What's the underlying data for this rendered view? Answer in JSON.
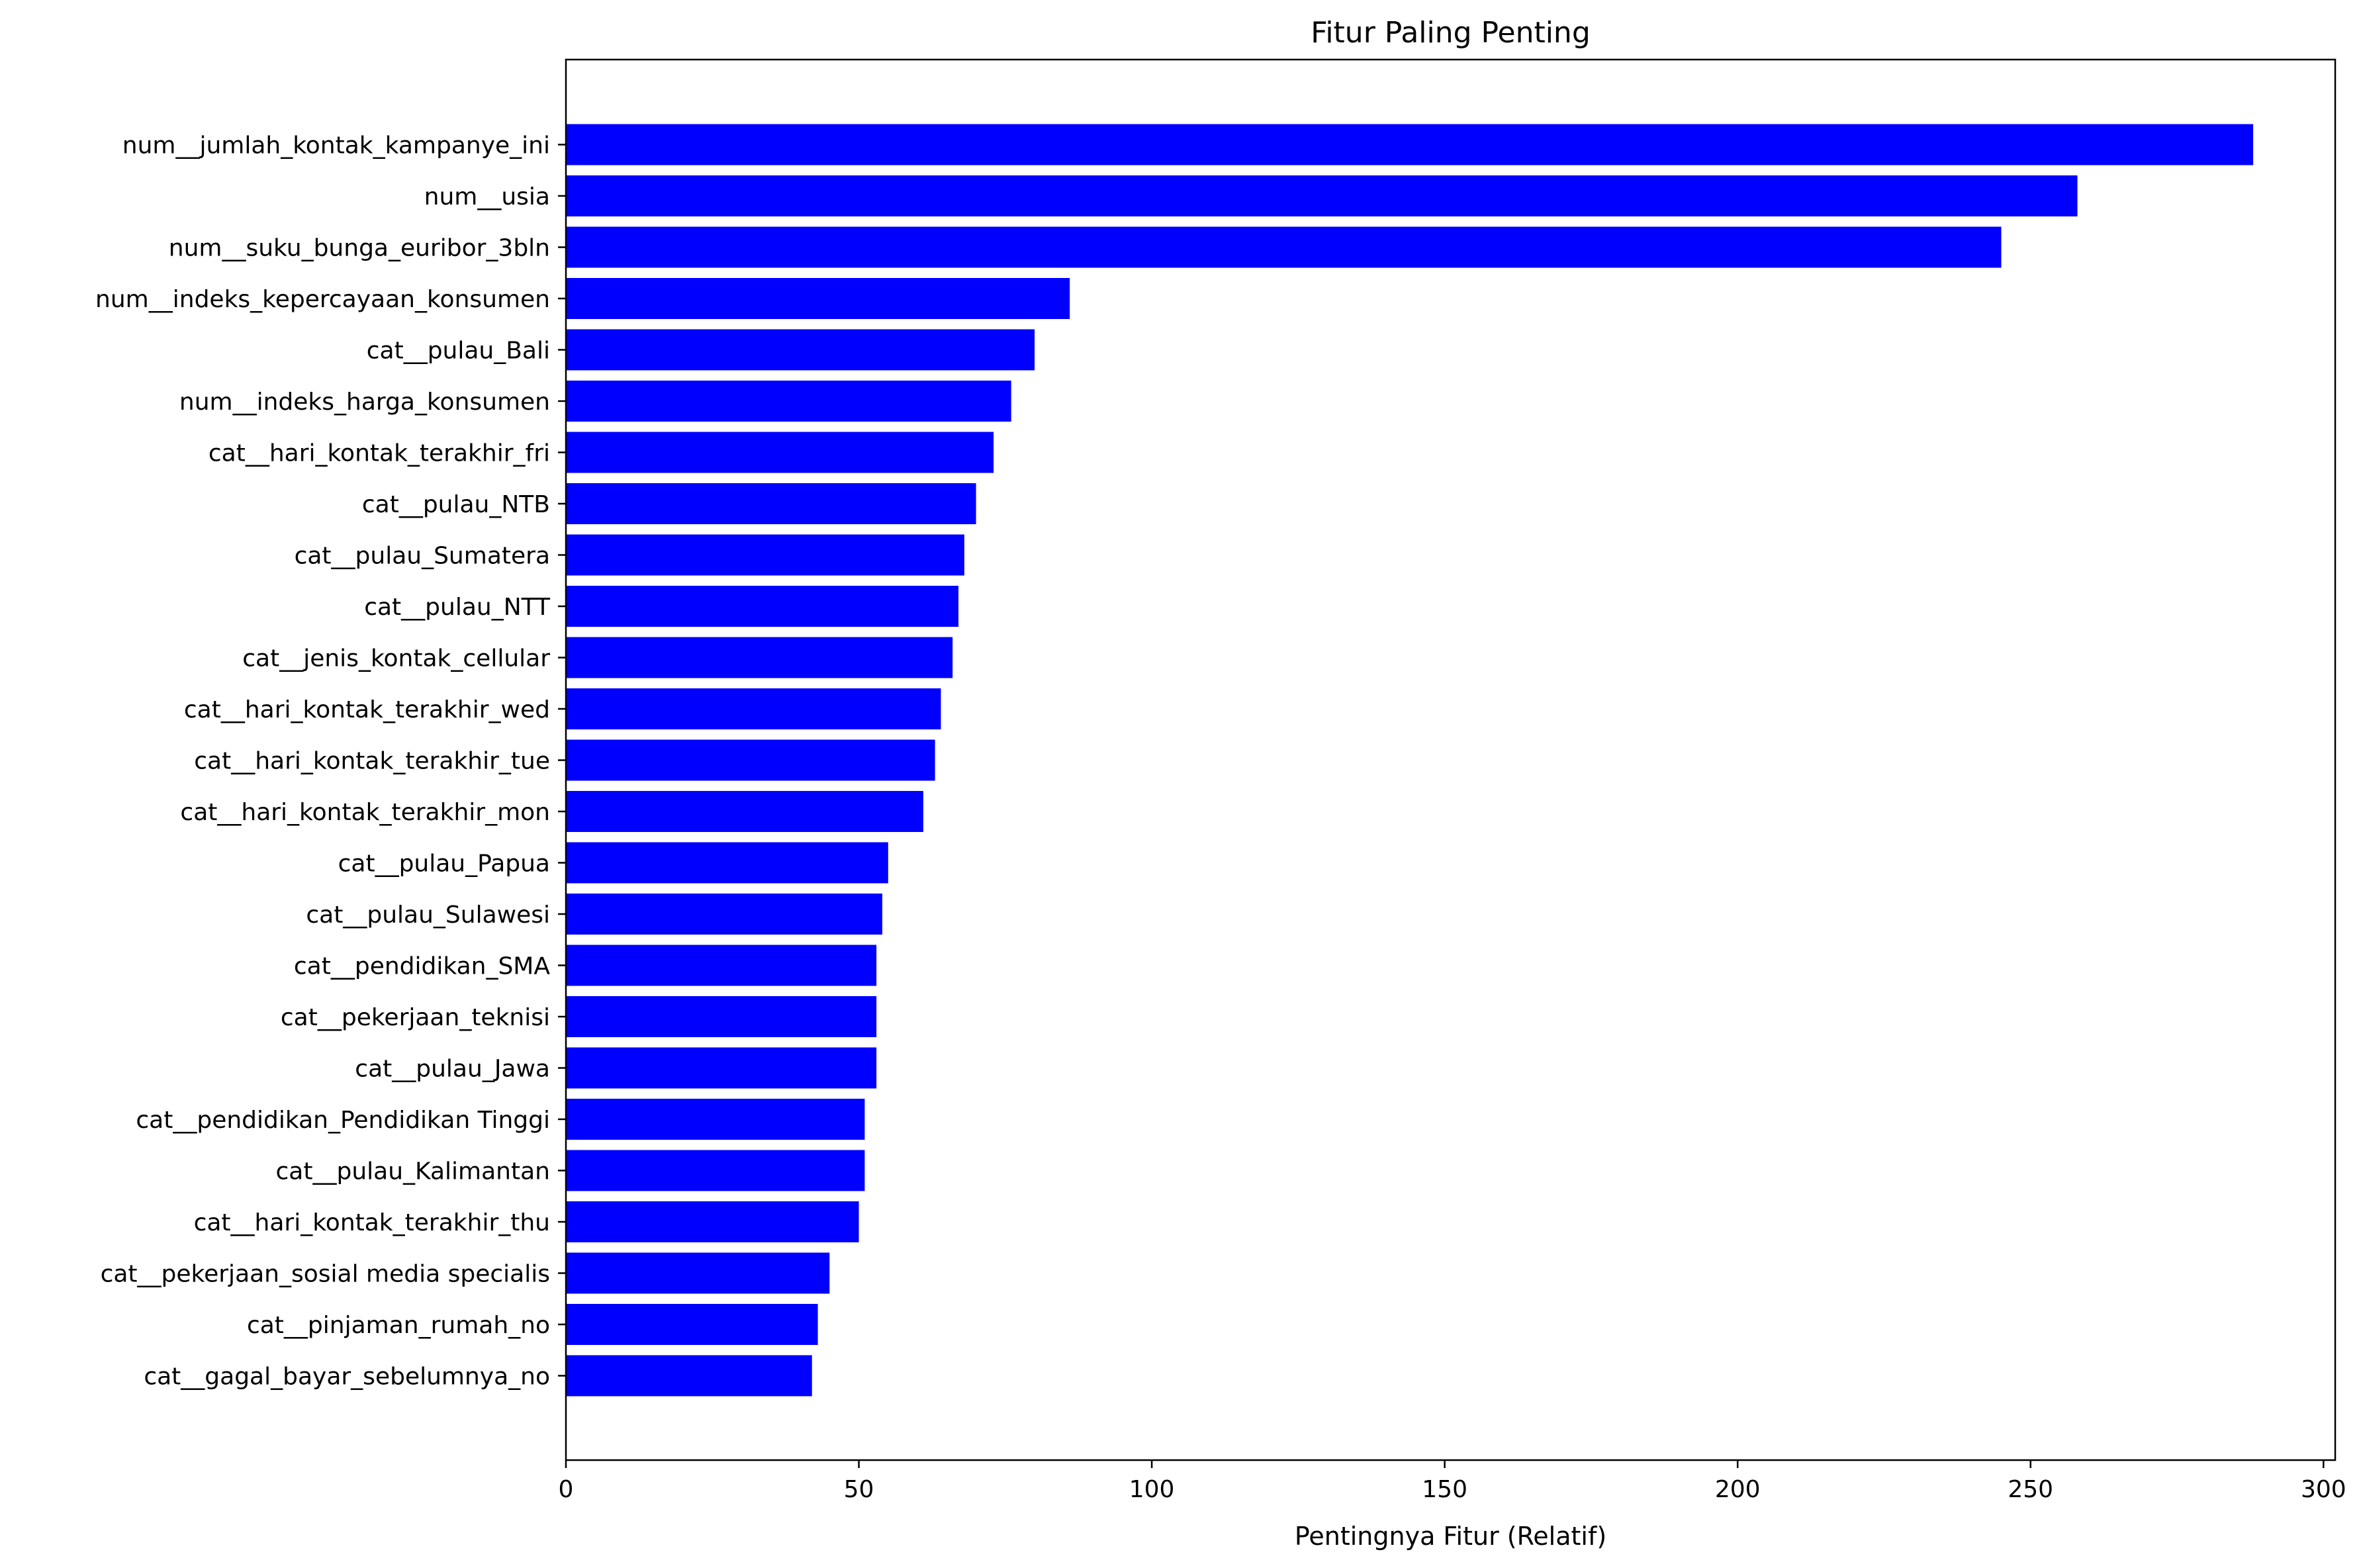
{
  "chart_data": {
    "type": "bar",
    "orientation": "horizontal",
    "title": "Fitur Paling Penting",
    "xlabel": "Pentingnya Fitur (Relatif)",
    "ylabel": "",
    "xlim": [
      0,
      302
    ],
    "xticks": [
      0,
      50,
      100,
      150,
      200,
      250,
      300
    ],
    "xtick_labels": [
      "0",
      "50",
      "100",
      "150",
      "200",
      "250",
      "300"
    ],
    "grid": false,
    "bar_color": "#0000ff",
    "categories": [
      "num__jumlah_kontak_kampanye_ini",
      "num__usia",
      "num__suku_bunga_euribor_3bln",
      "num__indeks_kepercayaan_konsumen",
      "cat__pulau_Bali",
      "num__indeks_harga_konsumen",
      "cat__hari_kontak_terakhir_fri",
      "cat__pulau_NTB",
      "cat__pulau_Sumatera",
      "cat__pulau_NTT",
      "cat__jenis_kontak_cellular",
      "cat__hari_kontak_terakhir_wed",
      "cat__hari_kontak_terakhir_tue",
      "cat__hari_kontak_terakhir_mon",
      "cat__pulau_Papua",
      "cat__pulau_Sulawesi",
      "cat__pendidikan_SMA",
      "cat__pekerjaan_teknisi",
      "cat__pulau_Jawa",
      "cat__pendidikan_Pendidikan Tinggi",
      "cat__pulau_Kalimantan",
      "cat__hari_kontak_terakhir_thu",
      "cat__pekerjaan_sosial media specialis",
      "cat__pinjaman_rumah_no",
      "cat__gagal_bayar_sebelumnya_no"
    ],
    "values": [
      288,
      258,
      245,
      86,
      80,
      76,
      73,
      70,
      68,
      67,
      66,
      64,
      63,
      61,
      55,
      54,
      53,
      53,
      53,
      51,
      51,
      50,
      45,
      43,
      42
    ]
  }
}
